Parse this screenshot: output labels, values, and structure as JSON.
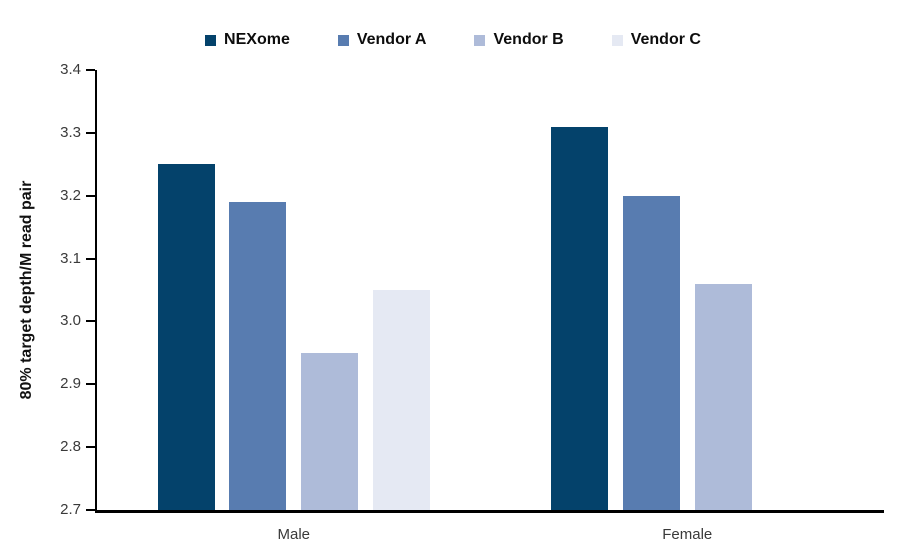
{
  "chart_data": {
    "type": "bar",
    "categories": [
      "Male",
      "Female"
    ],
    "series": [
      {
        "name": "NEXome",
        "color": "#04426B",
        "values": [
          3.25,
          3.31
        ]
      },
      {
        "name": "Vendor A",
        "color": "#587CB0",
        "values": [
          3.19,
          3.2
        ]
      },
      {
        "name": "Vendor B",
        "color": "#AEBBD9",
        "values": [
          2.95,
          3.06
        ]
      },
      {
        "name": "Vendor C",
        "color": "#E5E9F3",
        "values": [
          3.05,
          null
        ]
      }
    ],
    "title": "",
    "xlabel": "",
    "ylabel": "80% target depth/M read pair",
    "ylim": [
      2.7,
      3.4
    ],
    "ytick_step": 0.1,
    "ytick_format_decimals": 1,
    "grid": false,
    "legend_position": "top",
    "axis_color": "#000000",
    "tick_label_color": "#3a3a3a"
  }
}
